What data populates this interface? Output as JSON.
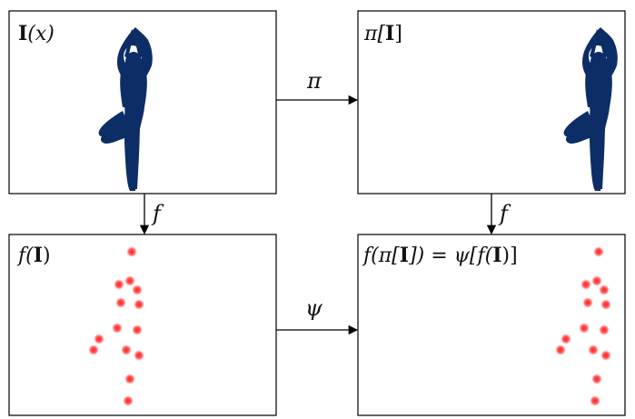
{
  "panels": {
    "top_left": {
      "label_prefix": "I",
      "label_suffix": "(x)"
    },
    "top_right": {
      "label_prefix": "π[",
      "label_bold": "I",
      "label_suffix": "]"
    },
    "bottom_left": {
      "label_prefix": "f(",
      "label_bold": "I",
      "label_suffix": ")"
    },
    "bottom_right": {
      "label_part1": "f(π[",
      "label_bold1": "I",
      "label_part2": "]) = ψ[f(",
      "label_bold2": "I",
      "label_part3": ")]"
    }
  },
  "arrows": {
    "top_horizontal": "π",
    "bottom_horizontal": "ψ",
    "left_vertical": "f",
    "right_vertical": "f"
  },
  "figure": {
    "color": "#0d2d66"
  },
  "keypoints": {
    "color": "#ee2222",
    "count": 13
  }
}
